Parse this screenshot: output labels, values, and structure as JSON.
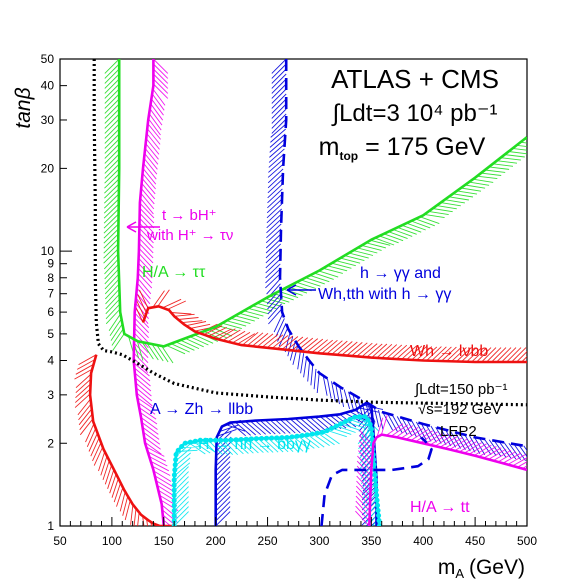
{
  "chart_data": {
    "type": "line",
    "x_axis": {
      "label": "m",
      "label_sub": "A",
      "label_unit": "(GeV)",
      "range": [
        50,
        500
      ],
      "ticks": [
        "50",
        "100",
        "150",
        "200",
        "250",
        "300",
        "350",
        "400",
        "450",
        "500"
      ]
    },
    "y_axis": {
      "label": "tanβ",
      "scale": "log",
      "range": [
        1,
        50
      ],
      "ticks": [
        "1",
        "2",
        "3",
        "4",
        "5",
        "6",
        "7",
        "8",
        "9",
        "10",
        "20",
        "30",
        "40",
        "50"
      ]
    },
    "header": {
      "line1": "ATLAS + CMS",
      "line2": "∫Ldt=3 10⁴ pb⁻¹",
      "line3_pre": "m",
      "line3_sub": "top",
      "line3_post": " = 175 GeV"
    },
    "annotations": {
      "charged_higgs_l1": "t → bH⁺",
      "charged_higgs_l2": "with H⁺ → τν",
      "htautau": "H/A → ττ",
      "hgg_l1": "h → γγ and",
      "hgg_l2": "Wh,tth with h → γγ",
      "whlnubb": "Wh → lνbb",
      "lep_l1": "∫Ldt=150 pb⁻¹",
      "lep_l2": "√s=192 GeV",
      "lep_l3": "LEP2",
      "azh": "A → Zh → llbb",
      "hhbbgg": "H → hh → bbγγ",
      "hatt": "H/A → tt"
    },
    "colors": {
      "green": "#22dd22",
      "red": "#ee1111",
      "magenta": "#ee00ee",
      "blue": "#0000dd",
      "cyan": "#00e5ee",
      "black": "#000000"
    },
    "series": [
      {
        "key": "charged_higgs",
        "color": "#ee00ee",
        "hatch_side": -1,
        "x": [
          140,
          140,
          135,
          130,
          127,
          126,
          125,
          122,
          121,
          124,
          128,
          132,
          140,
          148,
          150
        ],
        "y": [
          50,
          40,
          30,
          20,
          15,
          10,
          8,
          6,
          4,
          3,
          2.5,
          2,
          1.6,
          1.2,
          1
        ]
      },
      {
        "key": "htautau",
        "color": "#22dd22",
        "hatch_side": 1,
        "x": [
          107,
          107,
          106,
          108,
          112,
          125,
          150,
          200,
          250,
          300,
          350,
          400,
          450,
          500
        ],
        "y": [
          50,
          20,
          10,
          6,
          5,
          4.7,
          4.5,
          5.3,
          6.8,
          8.5,
          11,
          13.5,
          18.5,
          26
        ]
      },
      {
        "key": "hgg",
        "color": "#0000dd",
        "dashed": true,
        "hatch_side": 1,
        "x": [
          268,
          268,
          265,
          263,
          262,
          264,
          270,
          280,
          290,
          300,
          320,
          340,
          360,
          400,
          450,
          500
        ],
        "y": [
          50,
          30,
          20,
          12,
          8,
          6,
          5.2,
          4.5,
          4,
          3.6,
          3.2,
          2.9,
          2.6,
          2.35,
          2.1,
          1.95
        ]
      },
      {
        "key": "whlnubb",
        "color": "#ee1111",
        "hatch_side": -1,
        "x": [
          130,
          135,
          145,
          155,
          160,
          170,
          180,
          200,
          225,
          250,
          300,
          350,
          400,
          450,
          500
        ],
        "y": [
          5.5,
          6.2,
          6.3,
          6.1,
          5.8,
          5.4,
          5.1,
          4.8,
          4.55,
          4.45,
          4.25,
          4.1,
          4.0,
          3.95,
          3.95
        ]
      },
      {
        "key": "red_left",
        "color": "#ee1111",
        "hatch_side": 1,
        "x": [
          85,
          80,
          79,
          82,
          92,
          104,
          112,
          120,
          128,
          135,
          140,
          146,
          152,
          155,
          157,
          160
        ],
        "y": [
          4.2,
          3.6,
          3.0,
          2.4,
          1.9,
          1.55,
          1.35,
          1.2,
          1.1,
          1.05,
          1.02,
          1.0,
          1.0,
          1.0,
          1.0,
          1.0
        ]
      },
      {
        "key": "lep2",
        "color": "#000000",
        "dotted": true,
        "x": [
          83,
          83,
          84,
          84,
          85,
          87,
          92,
          100,
          110,
          120,
          130,
          140,
          160,
          200,
          250,
          300,
          350,
          400,
          450,
          500
        ],
        "y": [
          50,
          30,
          15,
          8,
          5.5,
          4.6,
          4.35,
          4.3,
          4.2,
          4.0,
          3.8,
          3.6,
          3.3,
          3.05,
          2.95,
          2.87,
          2.82,
          2.8,
          2.78,
          2.76
        ]
      },
      {
        "key": "azh",
        "color": "#0000dd",
        "hatch_side": 1,
        "x": [
          200,
          200,
          201,
          206,
          214,
          240,
          270,
          300,
          320,
          335,
          345,
          350,
          352,
          355,
          355
        ],
        "y": [
          1,
          1.6,
          2.1,
          2.3,
          2.38,
          2.42,
          2.45,
          2.5,
          2.55,
          2.65,
          2.8,
          2.75,
          2.2,
          1.5,
          1
        ]
      },
      {
        "key": "hhbbgg",
        "color": "#00e5ee",
        "dotted_markers": true,
        "hatch_side": 1,
        "x": [
          160,
          160,
          162,
          170,
          185,
          210,
          240,
          270,
          290,
          305,
          315,
          325,
          335,
          345,
          350,
          352,
          355,
          358
        ],
        "y": [
          1,
          1.5,
          1.85,
          2.0,
          2.05,
          2.05,
          2.08,
          2.1,
          2.15,
          2.2,
          2.3,
          2.4,
          2.5,
          2.5,
          2.3,
          1.8,
          1.3,
          1
        ]
      },
      {
        "key": "hatt",
        "color": "#ee00ee",
        "hatch_side": -1,
        "x": [
          348,
          350,
          352,
          355,
          360,
          375,
          400,
          425,
          450,
          475,
          500
        ],
        "y": [
          1,
          1.6,
          2.0,
          2.1,
          2.15,
          2.1,
          2.0,
          1.9,
          1.8,
          1.7,
          1.6
        ]
      },
      {
        "key": "hatt_dash",
        "color": "#0000dd",
        "dashed": true,
        "x": [
          302,
          305,
          312,
          322,
          340,
          370,
          395,
          405,
          408,
          404,
          398
        ],
        "y": [
          1,
          1.3,
          1.53,
          1.6,
          1.6,
          1.6,
          1.65,
          1.75,
          1.9,
          2.0,
          2.1
        ]
      }
    ]
  }
}
